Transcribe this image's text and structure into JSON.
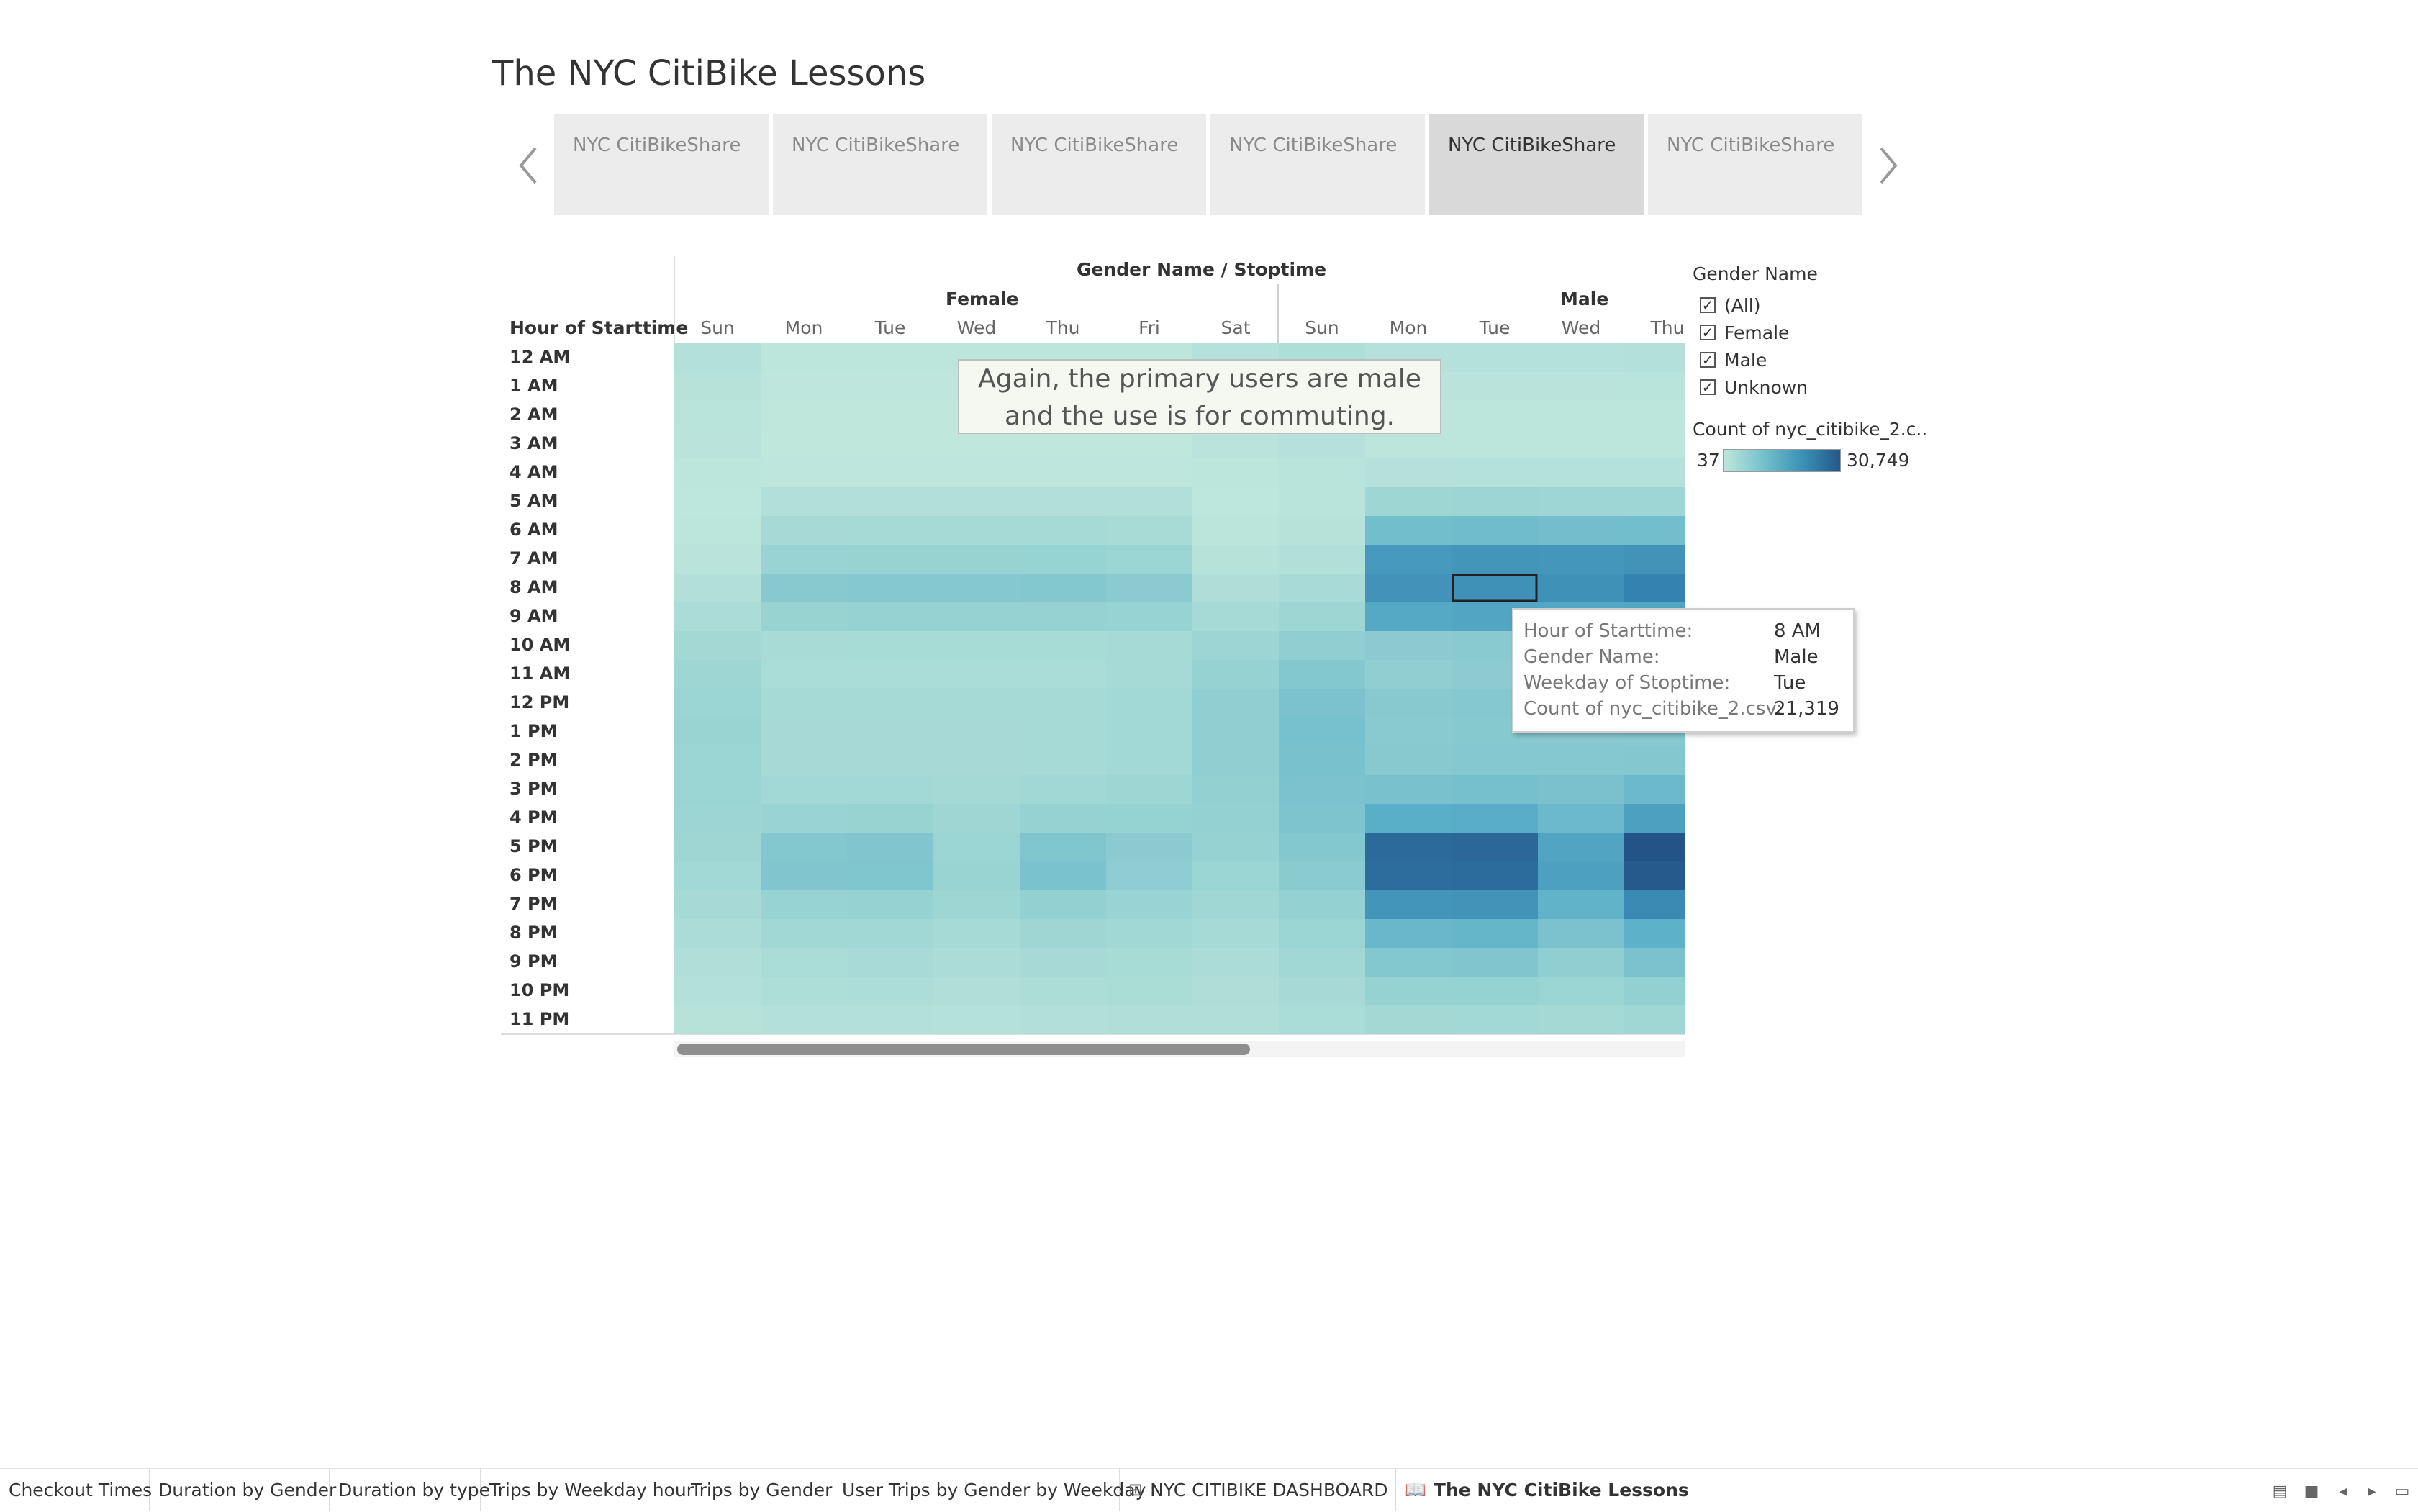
{
  "title": "The NYC CitiBike Lessons",
  "story_points": [
    {
      "label": "NYC CitiBikeShare",
      "active": false
    },
    {
      "label": "NYC CitiBikeShare",
      "active": false
    },
    {
      "label": "NYC CitiBikeShare",
      "active": false
    },
    {
      "label": "NYC CitiBikeShare",
      "active": false
    },
    {
      "label": "NYC CitiBikeShare",
      "active": true
    },
    {
      "label": "NYC CitiBikeShare",
      "active": false
    }
  ],
  "chart": {
    "header": "Gender Name / Stoptime",
    "row_header": "Hour of Starttime",
    "groups": [
      "Female",
      "Male"
    ],
    "days_female": [
      "Sun",
      "Mon",
      "Tue",
      "Wed",
      "Thu",
      "Fri",
      "Sat"
    ],
    "days_male": [
      "Sun",
      "Mon",
      "Tue",
      "Wed",
      "Thu"
    ],
    "hours": [
      "12 AM",
      "1 AM",
      "2 AM",
      "3 AM",
      "4 AM",
      "5 AM",
      "6 AM",
      "7 AM",
      "8 AM",
      "9 AM",
      "10 AM",
      "11 AM",
      "12 PM",
      "1 PM",
      "2 PM",
      "3 PM",
      "4 PM",
      "5 PM",
      "6 PM",
      "7 PM",
      "8 PM",
      "9 PM",
      "10 PM",
      "11 PM"
    ],
    "annotation": "Again, the primary users are male and the use is for commuting."
  },
  "chart_data": {
    "type": "heatmap",
    "title": "",
    "xlabel": "Gender Name / Stoptime",
    "ylabel": "Hour of Starttime",
    "x": [
      "Female Sun",
      "Female Mon",
      "Female Tue",
      "Female Wed",
      "Female Thu",
      "Female Fri",
      "Female Sat",
      "Male Sun",
      "Male Mon",
      "Male Tue",
      "Male Wed",
      "Male Thu"
    ],
    "y": [
      "12 AM",
      "1 AM",
      "2 AM",
      "3 AM",
      "4 AM",
      "5 AM",
      "6 AM",
      "7 AM",
      "8 AM",
      "9 AM",
      "10 AM",
      "11 AM",
      "12 PM",
      "1 PM",
      "2 PM",
      "3 PM",
      "4 PM",
      "5 PM",
      "6 PM",
      "7 PM",
      "8 PM",
      "9 PM",
      "10 PM",
      "11 PM"
    ],
    "color_range": [
      37,
      30749
    ],
    "values": [
      [
        2500,
        900,
        900,
        900,
        900,
        900,
        2300,
        3500,
        2200,
        2300,
        2300,
        2400
      ],
      [
        2000,
        500,
        500,
        500,
        500,
        500,
        1800,
        3000,
        1200,
        1300,
        1300,
        1400
      ],
      [
        1600,
        300,
        300,
        300,
        300,
        300,
        1500,
        2600,
        800,
        900,
        900,
        900
      ],
      [
        1200,
        300,
        300,
        300,
        300,
        300,
        1200,
        2200,
        900,
        900,
        900,
        900
      ],
      [
        900,
        600,
        600,
        600,
        600,
        600,
        900,
        1600,
        2200,
        2300,
        2300,
        2300
      ],
      [
        700,
        2600,
        2700,
        2700,
        2700,
        2600,
        700,
        1400,
        6500,
        6700,
        6600,
        6600
      ],
      [
        900,
        4800,
        5000,
        5000,
        5000,
        4600,
        1000,
        2000,
        12500,
        12800,
        12600,
        12700
      ],
      [
        1500,
        7500,
        7700,
        7700,
        7800,
        7000,
        1800,
        2800,
        20000,
        20500,
        20300,
        20800
      ],
      [
        2600,
        10000,
        10300,
        10300,
        10500,
        9500,
        3300,
        4500,
        21000,
        21319,
        21300,
        24000
      ],
      [
        4000,
        7700,
        7900,
        7900,
        8000,
        7600,
        5000,
        6500,
        17000,
        17500,
        17300,
        17600
      ],
      [
        5500,
        4600,
        4700,
        4700,
        4700,
        5000,
        6800,
        8800,
        9500,
        9800,
        9700,
        9800
      ],
      [
        6500,
        4300,
        4300,
        4300,
        4400,
        5000,
        8000,
        10500,
        9000,
        9300,
        9200,
        9300
      ],
      [
        7200,
        4900,
        4900,
        4900,
        5000,
        5600,
        8800,
        11500,
        10000,
        10300,
        10200,
        10300
      ],
      [
        7400,
        4800,
        4800,
        4800,
        4900,
        5600,
        9000,
        12000,
        9800,
        10100,
        10000,
        10100
      ],
      [
        7200,
        4800,
        4800,
        4800,
        5000,
        5700,
        8800,
        11800,
        10000,
        10300,
        10200,
        10400
      ],
      [
        7000,
        5600,
        5700,
        5200,
        5900,
        6500,
        8500,
        11500,
        11800,
        12100,
        11700,
        13500
      ],
      [
        6800,
        7500,
        7700,
        6300,
        8000,
        8200,
        8400,
        11200,
        16000,
        16300,
        13500,
        18500
      ],
      [
        6300,
        10500,
        10800,
        7000,
        11000,
        9500,
        8000,
        10500,
        27500,
        27800,
        17800,
        30749
      ],
      [
        5700,
        10800,
        11000,
        7400,
        11600,
        9200,
        7200,
        9600,
        27000,
        27200,
        18500,
        30000
      ],
      [
        4800,
        7800,
        8000,
        6500,
        8500,
        7500,
        6000,
        8400,
        20500,
        20800,
        15000,
        22500
      ],
      [
        4000,
        5800,
        5900,
        5000,
        6300,
        5900,
        5000,
        7000,
        14000,
        14300,
        11500,
        15500
      ],
      [
        3200,
        4400,
        4500,
        4000,
        4800,
        4700,
        4000,
        5800,
        10500,
        10800,
        9000,
        11500
      ],
      [
        2500,
        3500,
        3600,
        3200,
        3800,
        3900,
        3300,
        4800,
        8000,
        8200,
        7200,
        8500
      ],
      [
        2000,
        2400,
        2500,
        2300,
        2700,
        3100,
        3000,
        4300,
        5500,
        5700,
        5300,
        6000
      ]
    ]
  },
  "tooltip": {
    "rows": [
      {
        "key": "Hour of Starttime:",
        "value": "8 AM"
      },
      {
        "key": "Gender Name:",
        "value": "Male"
      },
      {
        "key": "Weekday of Stoptime:",
        "value": "Tue"
      },
      {
        "key": "Count of nyc_citibike_2.csv:",
        "value": "21,319"
      }
    ]
  },
  "legend": {
    "filter_title": "Gender Name",
    "filter_items": [
      {
        "label": "(All)",
        "checked": true
      },
      {
        "label": "Female",
        "checked": true
      },
      {
        "label": "Male",
        "checked": true
      },
      {
        "label": "Unknown",
        "checked": true
      }
    ],
    "color_title": "Count of nyc_citibike_2.c..",
    "color_min": "37",
    "color_max": "30,749"
  },
  "tabs": [
    {
      "label": "Checkout Times",
      "icon": "",
      "active": false
    },
    {
      "label": "Duration by Gender",
      "icon": "",
      "active": false
    },
    {
      "label": "Duration by type",
      "icon": "",
      "active": false
    },
    {
      "label": "Trips by Weekday hour",
      "icon": "",
      "active": false
    },
    {
      "label": "Trips by Gender",
      "icon": "",
      "active": false
    },
    {
      "label": "User Trips by Gender by Weekday",
      "icon": "",
      "active": false
    },
    {
      "label": "NYC CITIBIKE DASHBOARD",
      "icon": "dashboard-grid-icon",
      "active": false
    },
    {
      "label": "The NYC CitiBike Lessons",
      "icon": "story-book-icon",
      "active": true
    }
  ],
  "colors": {
    "scale_low": "#bfe6dc",
    "scale_high": "#24588a",
    "selected_border": "#222222"
  }
}
